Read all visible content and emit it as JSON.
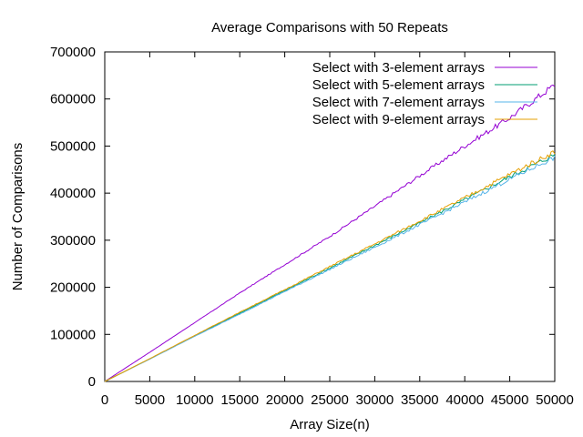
{
  "chart_data": {
    "type": "line",
    "title": "Average Comparisons with 50 Repeats",
    "xlabel": "Array Size(n)",
    "ylabel": "Number of Comparisons",
    "xlim": [
      0,
      50000
    ],
    "ylim": [
      0,
      700000
    ],
    "grid": false,
    "legend_position": "top-right",
    "x_ticks": [
      0,
      5000,
      10000,
      15000,
      20000,
      25000,
      30000,
      35000,
      40000,
      45000,
      50000
    ],
    "x_tick_labels": [
      "0",
      "5000",
      "10000",
      "15000",
      "20000",
      "25000",
      "30000",
      "35000",
      "40000",
      "45000",
      "50000"
    ],
    "y_ticks": [
      0,
      100000,
      200000,
      300000,
      400000,
      500000,
      600000,
      700000
    ],
    "y_tick_labels": [
      "0",
      "100000",
      "200000",
      "300000",
      "400000",
      "500000",
      "600000",
      "700000"
    ],
    "x": [
      0,
      5000,
      10000,
      15000,
      20000,
      25000,
      30000,
      35000,
      40000,
      45000,
      50000
    ],
    "series": [
      {
        "name": "Select with 3-element arrays",
        "color": "#9400d3",
        "values": [
          0,
          62000,
          125000,
          188000,
          248000,
          308000,
          372000,
          437000,
          500000,
          560000,
          630000
        ]
      },
      {
        "name": "Select with 5-element arrays",
        "color": "#009e73",
        "values": [
          0,
          48000,
          97000,
          145000,
          193000,
          241000,
          289000,
          337000,
          386000,
          435000,
          482000
        ]
      },
      {
        "name": "Select with 7-element arrays",
        "color": "#56b4e9",
        "values": [
          0,
          47500,
          96000,
          143000,
          191000,
          238000,
          285000,
          333000,
          381000,
          430000,
          476000
        ]
      },
      {
        "name": "Select with 9-element arrays",
        "color": "#e69f00",
        "values": [
          0,
          48500,
          98000,
          147000,
          195000,
          244000,
          292000,
          341000,
          390000,
          440000,
          488000
        ]
      }
    ]
  }
}
